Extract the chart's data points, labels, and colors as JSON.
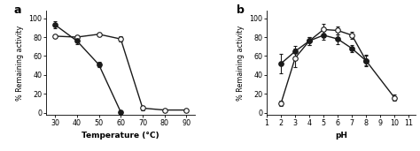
{
  "panel_a": {
    "title": "a",
    "xlabel": "Temperature (°C)",
    "ylabel": "% Remaining activity",
    "xlim": [
      26,
      94
    ],
    "ylim": [
      -2,
      108
    ],
    "xticks": [
      30,
      40,
      50,
      60,
      70,
      80,
      90
    ],
    "yticks": [
      0,
      20,
      40,
      60,
      80,
      100
    ],
    "open_circle": {
      "x": [
        30,
        40,
        50,
        60,
        70,
        80,
        90
      ],
      "y": [
        81,
        80,
        83,
        78,
        5,
        3,
        3
      ],
      "yerr": [
        2,
        2,
        2,
        3,
        2,
        1,
        1
      ]
    },
    "filled_circle": {
      "x": [
        30,
        40,
        50,
        60
      ],
      "y": [
        93,
        76,
        51,
        1
      ],
      "yerr": [
        4,
        3,
        3,
        1
      ]
    }
  },
  "panel_b": {
    "title": "b",
    "xlabel": "pH",
    "ylabel": "% Remaining activity",
    "xlim": [
      1,
      11.5
    ],
    "ylim": [
      -2,
      108
    ],
    "xticks": [
      1,
      2,
      3,
      4,
      5,
      6,
      7,
      8,
      9,
      10,
      11
    ],
    "yticks": [
      0,
      20,
      40,
      60,
      80,
      100
    ],
    "open_circle": {
      "x": [
        2,
        3,
        4,
        5,
        6,
        7,
        8,
        10
      ],
      "y": [
        10,
        58,
        76,
        88,
        87,
        82,
        55,
        16
      ],
      "yerr": [
        3,
        10,
        4,
        6,
        4,
        4,
        6,
        3
      ]
    },
    "filled_circle": {
      "x": [
        2,
        3,
        4,
        5,
        6,
        7,
        8
      ],
      "y": [
        52,
        65,
        76,
        82,
        78,
        68,
        55
      ],
      "yerr": [
        10,
        6,
        4,
        5,
        5,
        4,
        5
      ]
    }
  },
  "line_color": "#1a1a1a",
  "marker_size": 4,
  "linewidth": 1.0,
  "capsize": 1.5,
  "elinewidth": 0.8
}
